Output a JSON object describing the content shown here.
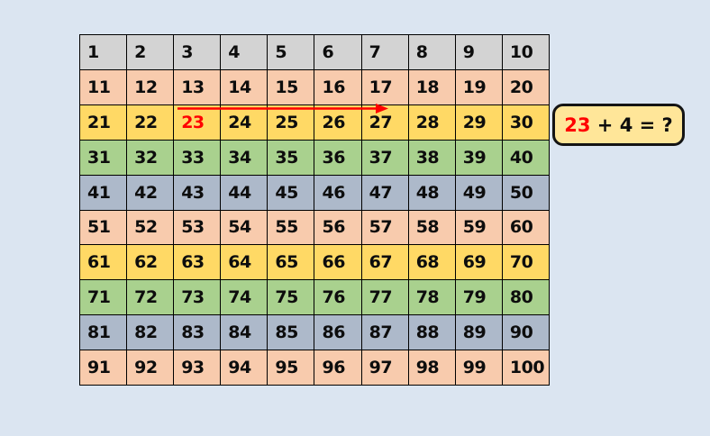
{
  "page": {
    "background_color": "#dbe5f1"
  },
  "number_chart": {
    "rows": [
      {
        "fill": "#d3d3d3",
        "cells": [
          "1",
          "2",
          "3",
          "4",
          "5",
          "6",
          "7",
          "8",
          "9",
          "10"
        ]
      },
      {
        "fill": "#f8cbad",
        "cells": [
          "11",
          "12",
          "13",
          "14",
          "15",
          "16",
          "17",
          "18",
          "19",
          "20"
        ]
      },
      {
        "fill": "#ffd965",
        "cells": [
          "21",
          "22",
          "23",
          "24",
          "25",
          "26",
          "27",
          "28",
          "29",
          "30"
        ]
      },
      {
        "fill": "#a9d18e",
        "cells": [
          "31",
          "32",
          "33",
          "34",
          "35",
          "36",
          "37",
          "38",
          "39",
          "40"
        ]
      },
      {
        "fill": "#adb9ca",
        "cells": [
          "41",
          "42",
          "43",
          "44",
          "45",
          "46",
          "47",
          "48",
          "49",
          "50"
        ]
      },
      {
        "fill": "#f8cbad",
        "cells": [
          "51",
          "52",
          "53",
          "54",
          "55",
          "56",
          "57",
          "58",
          "59",
          "60"
        ]
      },
      {
        "fill": "#ffd965",
        "cells": [
          "61",
          "62",
          "63",
          "64",
          "65",
          "66",
          "67",
          "68",
          "69",
          "70"
        ]
      },
      {
        "fill": "#a9d18e",
        "cells": [
          "71",
          "72",
          "73",
          "74",
          "75",
          "76",
          "77",
          "78",
          "79",
          "80"
        ]
      },
      {
        "fill": "#adb9ca",
        "cells": [
          "81",
          "82",
          "83",
          "84",
          "85",
          "86",
          "87",
          "88",
          "89",
          "90"
        ]
      },
      {
        "fill": "#f8cbad",
        "cells": [
          "91",
          "92",
          "93",
          "94",
          "95",
          "96",
          "97",
          "98",
          "99",
          "100"
        ]
      }
    ],
    "highlighted_value": "23",
    "highlight_text_color": "#ff0000"
  },
  "arrow": {
    "color": "#ff0000",
    "from_value": "23",
    "to_value": "27",
    "jump_count": "4"
  },
  "callout": {
    "red_text": "23",
    "rest_text": " + 4 = ?",
    "fill": "#ffe699",
    "border_color": "#141414"
  }
}
